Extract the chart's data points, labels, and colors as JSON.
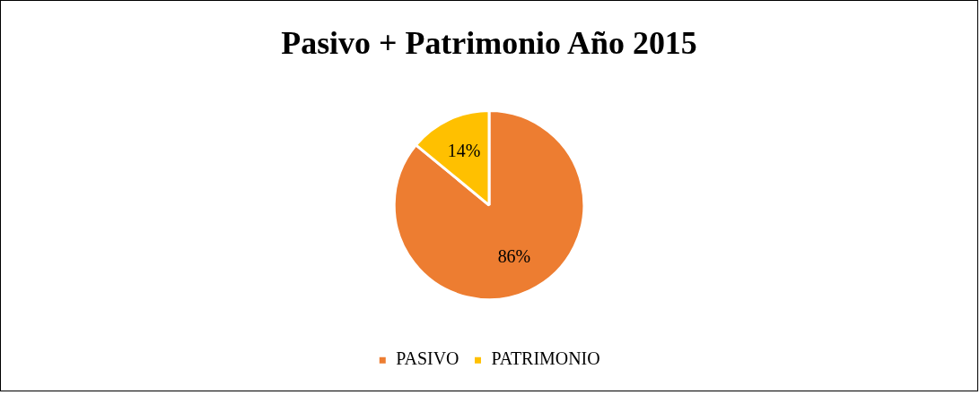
{
  "chart_data": {
    "type": "pie",
    "title": "Pasivo + Patrimonio Año 2015",
    "categories": [
      "PASIVO",
      "PATRIMONIO"
    ],
    "values": [
      86,
      14
    ],
    "colors": [
      "#ed7d31",
      "#ffc000"
    ],
    "value_labels": [
      "86%",
      "14%"
    ],
    "legend": "bottom"
  }
}
